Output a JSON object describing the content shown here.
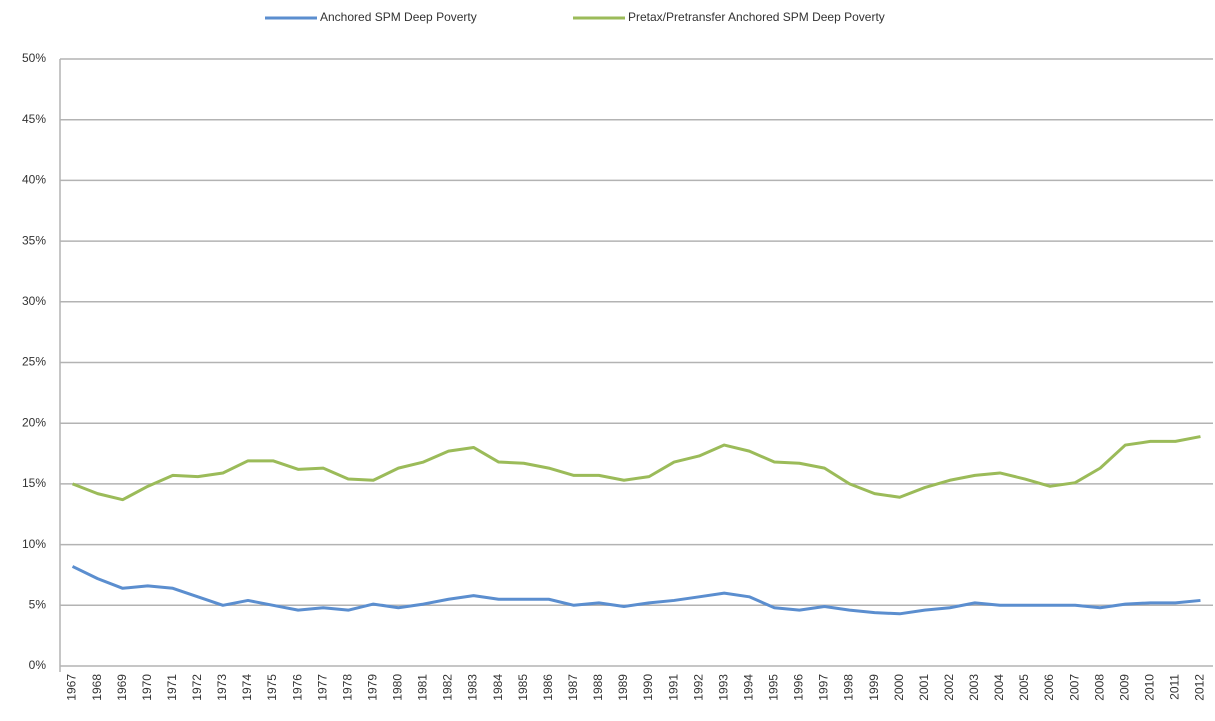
{
  "chart_data": {
    "type": "line",
    "categories": [
      "1967",
      "1968",
      "1969",
      "1970",
      "1971",
      "1972",
      "1973",
      "1974",
      "1975",
      "1976",
      "1977",
      "1978",
      "1979",
      "1980",
      "1981",
      "1982",
      "1983",
      "1984",
      "1985",
      "1986",
      "1987",
      "1988",
      "1989",
      "1990",
      "1991",
      "1992",
      "1993",
      "1994",
      "1995",
      "1996",
      "1997",
      "1998",
      "1999",
      "2000",
      "2001",
      "2002",
      "2003",
      "2004",
      "2005",
      "2006",
      "2007",
      "2008",
      "2009",
      "2010",
      "2011",
      "2012"
    ],
    "series": [
      {
        "name": "Anchored SPM Deep Poverty",
        "color": "#5b8ecf",
        "values": [
          8.2,
          7.2,
          6.4,
          6.6,
          6.4,
          5.7,
          5.0,
          5.4,
          5.0,
          4.6,
          4.8,
          4.6,
          5.1,
          4.8,
          5.1,
          5.5,
          5.8,
          5.5,
          5.5,
          5.5,
          5.0,
          5.2,
          4.9,
          5.2,
          5.4,
          5.7,
          6.0,
          5.7,
          4.8,
          4.6,
          4.9,
          4.6,
          4.4,
          4.3,
          4.6,
          4.8,
          5.2,
          5.0,
          5.0,
          5.0,
          5.0,
          4.8,
          5.1,
          5.2,
          5.2,
          5.4
        ]
      },
      {
        "name": "Pretax/Pretransfer Anchored SPM Deep Poverty",
        "color": "#9bbb59",
        "values": [
          15.0,
          14.2,
          13.7,
          14.8,
          15.7,
          15.6,
          15.9,
          16.9,
          16.9,
          16.2,
          16.3,
          15.4,
          15.3,
          16.3,
          16.8,
          17.7,
          18.0,
          16.8,
          16.7,
          16.3,
          15.7,
          15.7,
          15.3,
          15.6,
          16.8,
          17.3,
          18.2,
          17.7,
          16.8,
          16.7,
          16.3,
          15.0,
          14.2,
          13.9,
          14.7,
          15.3,
          15.7,
          15.9,
          15.4,
          14.8,
          15.1,
          16.3,
          18.2,
          18.5,
          18.5,
          18.9
        ]
      }
    ],
    "ylim": [
      0,
      50
    ],
    "yticks": [
      {
        "value": 0,
        "label": "0%"
      },
      {
        "value": 5,
        "label": "5%"
      },
      {
        "value": 10,
        "label": "10%"
      },
      {
        "value": 15,
        "label": "15%"
      },
      {
        "value": 20,
        "label": "20%"
      },
      {
        "value": 25,
        "label": "25%"
      },
      {
        "value": 30,
        "label": "30%"
      },
      {
        "value": 35,
        "label": "35%"
      },
      {
        "value": 40,
        "label": "40%"
      },
      {
        "value": 45,
        "label": "45%"
      },
      {
        "value": 50,
        "label": "50%"
      }
    ],
    "grid": true,
    "legend": "top"
  }
}
